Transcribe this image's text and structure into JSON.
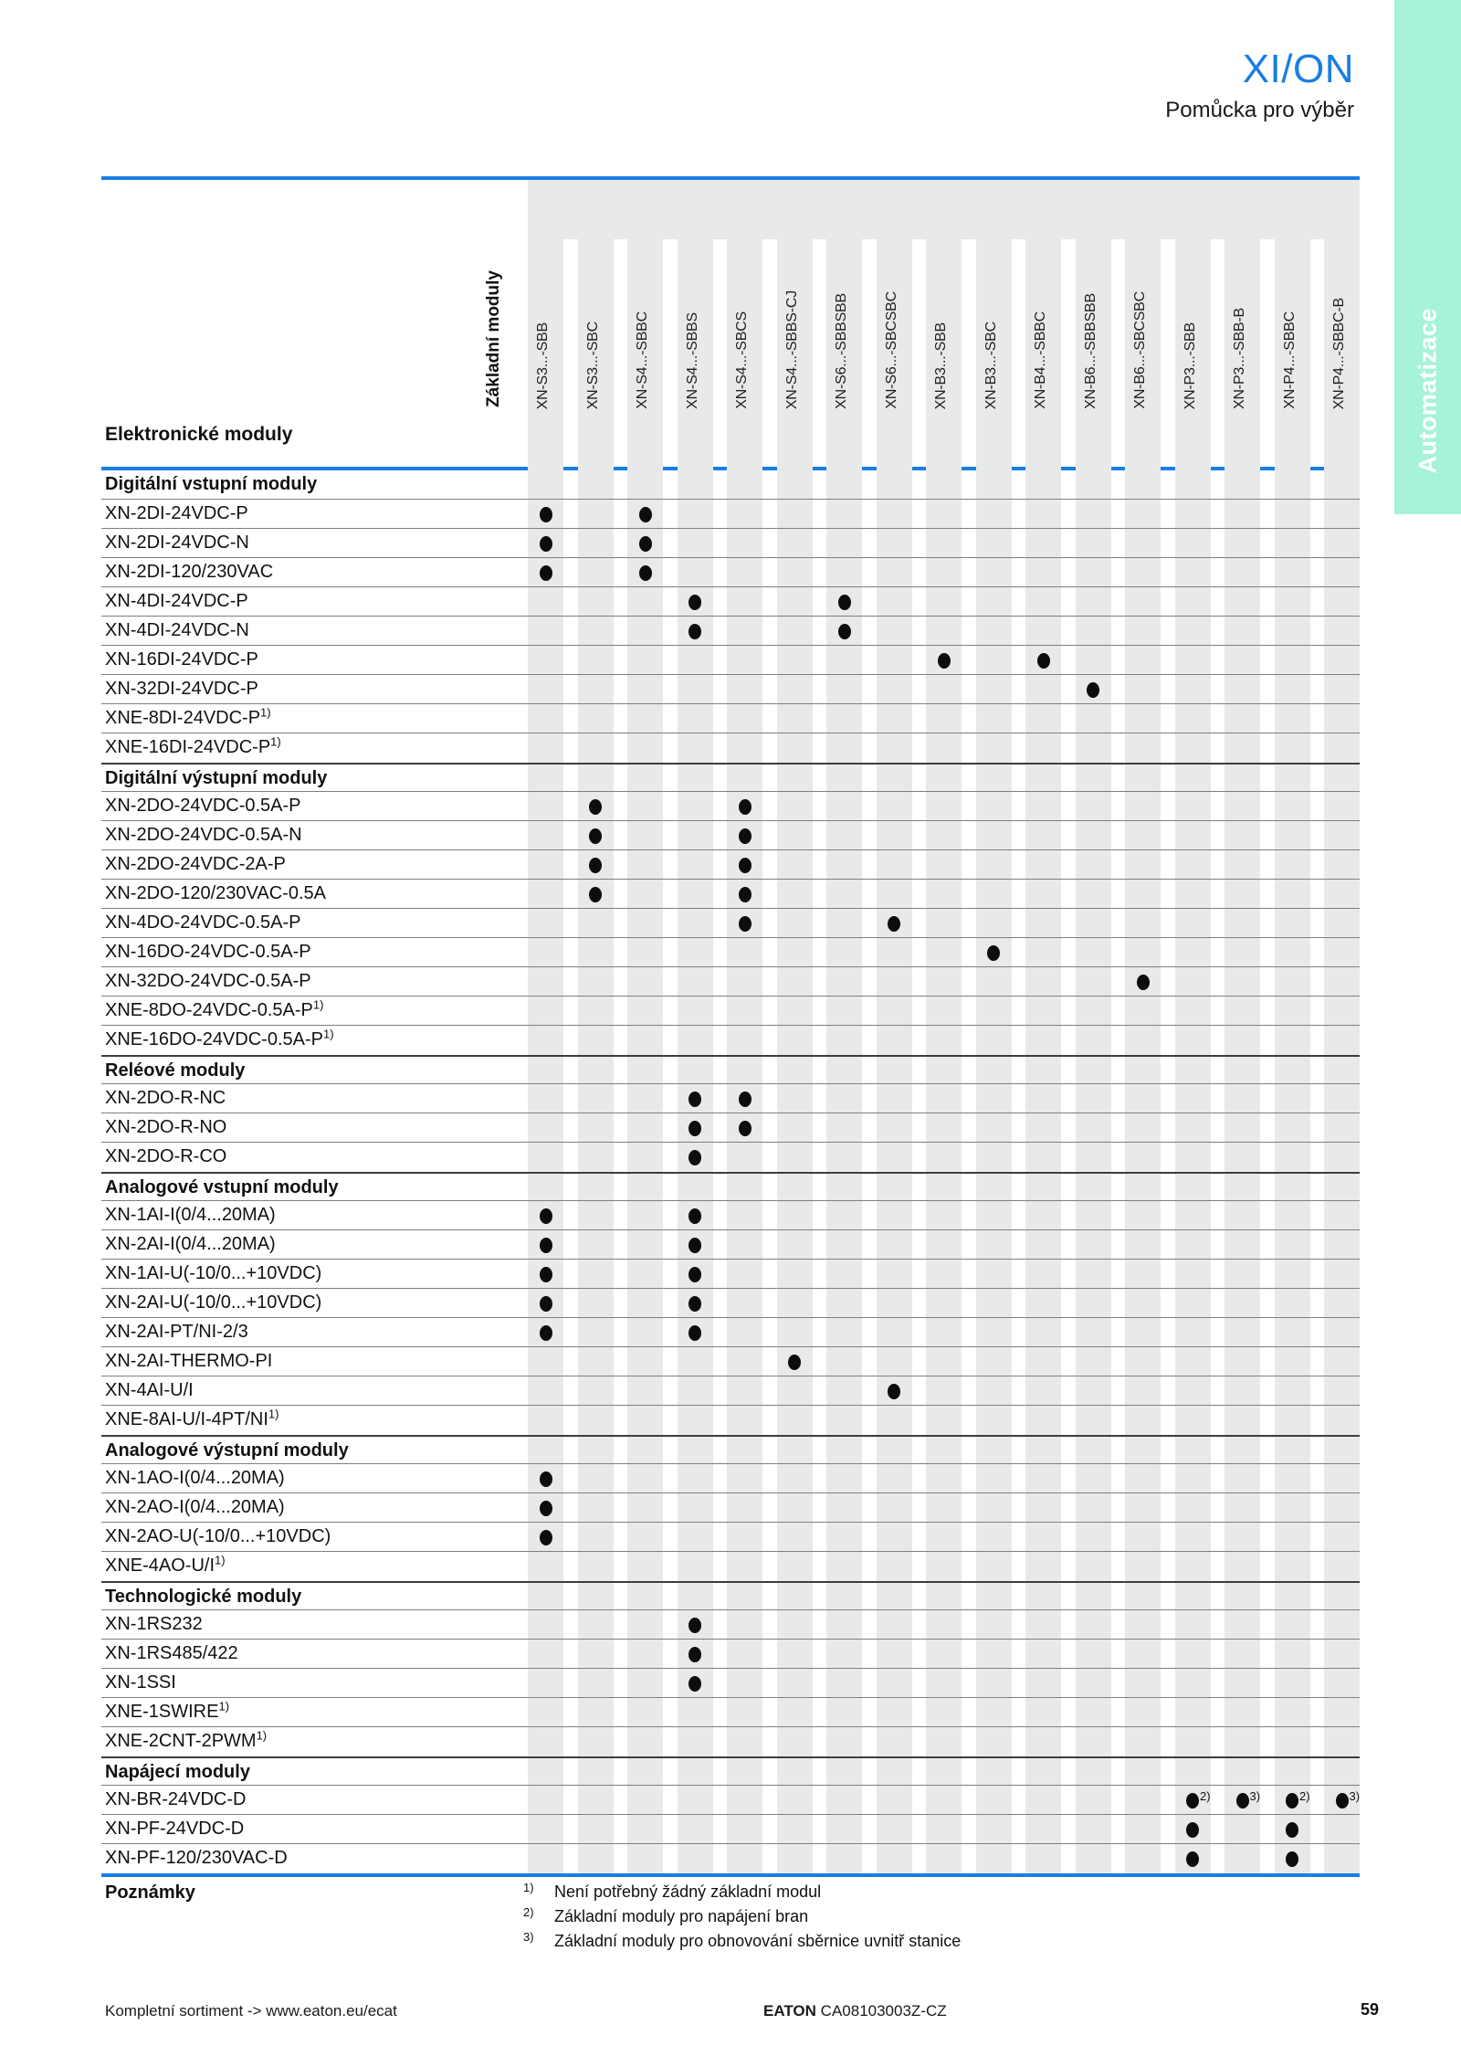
{
  "header": {
    "brand": "XI/ON",
    "subtitle": "Pomůcka pro výběr"
  },
  "side_tab": {
    "label": "Automatizace"
  },
  "matrix": {
    "corner_label": "Základní moduly",
    "rows_title": "Elektronické moduly",
    "columns": [
      "XN-S3...-SBB",
      "XN-S3...-SBC",
      "XN-S4...-SBBC",
      "XN-S4...-SBBS",
      "XN-S4...-SBCS",
      "XN-S4...-SBBS-CJ",
      "XN-S6...-SBBSBB",
      "XN-S6...-SBCSBC",
      "XN-B3...-SBB",
      "XN-B3...-SBC",
      "XN-B4...-SBBC",
      "XN-B6...-SBBSBB",
      "XN-B6...-SBCSBC",
      "XN-P3...-SBB",
      "XN-P3...-SBB-B",
      "XN-P4...-SBBC",
      "XN-P4...-SBBC-B"
    ],
    "sections": [
      {
        "title": "Digitální vstupní moduly",
        "rows": [
          {
            "label": "XN-2DI-24VDC-P",
            "dots": [
              1,
              3
            ]
          },
          {
            "label": "XN-2DI-24VDC-N",
            "dots": [
              1,
              3
            ]
          },
          {
            "label": "XN-2DI-120/230VAC",
            "dots": [
              1,
              3
            ]
          },
          {
            "label": "XN-4DI-24VDC-P",
            "dots": [
              4,
              7
            ]
          },
          {
            "label": "XN-4DI-24VDC-N",
            "dots": [
              4,
              7
            ]
          },
          {
            "label": "XN-16DI-24VDC-P",
            "dots": [
              9,
              11
            ]
          },
          {
            "label": "XN-32DI-24VDC-P",
            "dots": [
              12
            ]
          },
          {
            "label": "XNE-8DI-24VDC-P",
            "label_ref": "1)",
            "dots": []
          },
          {
            "label": "XNE-16DI-24VDC-P",
            "label_ref": "1)",
            "dots": []
          }
        ]
      },
      {
        "title": "Digitální výstupní moduly",
        "rows": [
          {
            "label": "XN-2DO-24VDC-0.5A-P",
            "dots": [
              2,
              5
            ]
          },
          {
            "label": "XN-2DO-24VDC-0.5A-N",
            "dots": [
              2,
              5
            ]
          },
          {
            "label": "XN-2DO-24VDC-2A-P",
            "dots": [
              2,
              5
            ]
          },
          {
            "label": "XN-2DO-120/230VAC-0.5A",
            "dots": [
              2,
              5
            ]
          },
          {
            "label": "XN-4DO-24VDC-0.5A-P",
            "dots": [
              5,
              8
            ]
          },
          {
            "label": "XN-16DO-24VDC-0.5A-P",
            "dots": [
              10
            ]
          },
          {
            "label": "XN-32DO-24VDC-0.5A-P",
            "dots": [
              13
            ]
          },
          {
            "label": "XNE-8DO-24VDC-0.5A-P",
            "label_ref": "1)",
            "dots": []
          },
          {
            "label": "XNE-16DO-24VDC-0.5A-P",
            "label_ref": "1)",
            "dots": []
          }
        ]
      },
      {
        "title": "Reléové moduly",
        "rows": [
          {
            "label": "XN-2DO-R-NC",
            "dots": [
              4,
              5
            ]
          },
          {
            "label": "XN-2DO-R-NO",
            "dots": [
              4,
              5
            ]
          },
          {
            "label": "XN-2DO-R-CO",
            "dots": [
              4
            ]
          }
        ]
      },
      {
        "title": "Analogové vstupní moduly",
        "rows": [
          {
            "label": "XN-1AI-I(0/4...20MA)",
            "dots": [
              1,
              4
            ]
          },
          {
            "label": "XN-2AI-I(0/4...20MA)",
            "dots": [
              1,
              4
            ]
          },
          {
            "label": "XN-1AI-U(-10/0...+10VDC)",
            "dots": [
              1,
              4
            ]
          },
          {
            "label": "XN-2AI-U(-10/0...+10VDC)",
            "dots": [
              1,
              4
            ]
          },
          {
            "label": "XN-2AI-PT/NI-2/3",
            "dots": [
              1,
              4
            ]
          },
          {
            "label": "XN-2AI-THERMO-PI",
            "dots": [
              6
            ]
          },
          {
            "label": "XN-4AI-U/I",
            "dots": [
              8
            ]
          },
          {
            "label": "XNE-8AI-U/I-4PT/NI",
            "label_ref": "1)",
            "dots": []
          }
        ]
      },
      {
        "title": "Analogové výstupní moduly",
        "rows": [
          {
            "label": "XN-1AO-I(0/4...20MA)",
            "dots": [
              1
            ]
          },
          {
            "label": "XN-2AO-I(0/4...20MA)",
            "dots": [
              1
            ]
          },
          {
            "label": "XN-2AO-U(-10/0...+10VDC)",
            "dots": [
              1
            ]
          },
          {
            "label": "XNE-4AO-U/I",
            "label_ref": "1)",
            "dots": []
          }
        ]
      },
      {
        "title": "Technologické moduly",
        "rows": [
          {
            "label": "XN-1RS232",
            "dots": [
              4
            ]
          },
          {
            "label": "XN-1RS485/422",
            "dots": [
              4
            ]
          },
          {
            "label": "XN-1SSI",
            "dots": [
              4
            ]
          },
          {
            "label": "XNE-1SWIRE",
            "label_ref": "1)",
            "dots": []
          },
          {
            "label": "XNE-2CNT-2PWM",
            "label_ref": "1)",
            "dots": []
          }
        ]
      },
      {
        "title": "Napájecí moduly",
        "rows": [
          {
            "label": "XN-BR-24VDC-D",
            "dots": [
              {
                "col": 14,
                "ref": "2)"
              },
              {
                "col": 15,
                "ref": "3)"
              },
              {
                "col": 16,
                "ref": "2)"
              },
              {
                "col": 17,
                "ref": "3)"
              }
            ]
          },
          {
            "label": "XN-PF-24VDC-D",
            "dots": [
              14,
              16
            ]
          },
          {
            "label": "XN-PF-120/230VAC-D",
            "dots": [
              14,
              16
            ]
          }
        ]
      }
    ]
  },
  "notes": {
    "title": "Poznámky",
    "items": [
      {
        "ref": "1)",
        "text": "Není potřebný žádný základní modul"
      },
      {
        "ref": "2)",
        "text": "Základní moduly pro napájení bran"
      },
      {
        "ref": "3)",
        "text": "Základní moduly pro obnovování sběrnice uvnitř stanice"
      }
    ]
  },
  "footer": {
    "left": "Kompletní sortiment -> www.eaton.eu/ecat",
    "brand": "EATON",
    "doc_number": "CA08103003Z-CZ",
    "page_number": "59"
  },
  "colors": {
    "accent_blue": "#1a7ee3",
    "tab_green": "#a7f3d7",
    "strip_gray": "#e8e9e9",
    "dot": "#0d0d0d"
  }
}
